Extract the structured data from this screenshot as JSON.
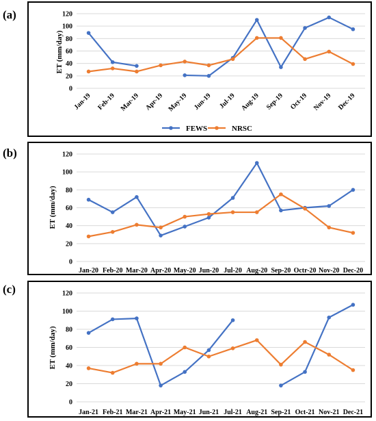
{
  "colors": {
    "fews": "#4472c4",
    "nrsc": "#ed7d31",
    "grid": "#d9d9d9",
    "frame": "#000000"
  },
  "chart_data": [
    {
      "panel_label": "(a)",
      "type": "line",
      "ylabel": "ET (mm/day)",
      "ylim": [
        0,
        120
      ],
      "yticks": [
        0,
        20,
        40,
        60,
        80,
        100,
        120
      ],
      "grid": true,
      "xtick_rotation": "-45deg",
      "legend": "bottom",
      "categories": [
        "Jan-19",
        "Feb-19",
        "Mar-19",
        "Apr-19",
        "May-19",
        "Jun-19",
        "Jul-19",
        "Aug-19",
        "Sep-19",
        "Oct-19",
        "Nov-19",
        "Dec-19"
      ],
      "series": [
        {
          "name": "FEWS",
          "color": "#4472c4",
          "values": [
            89,
            42,
            36,
            null,
            21,
            20,
            49,
            110,
            34,
            97,
            114,
            95
          ]
        },
        {
          "name": "NRSC",
          "color": "#ed7d31",
          "values": [
            27,
            32,
            27,
            37,
            43,
            37,
            47,
            81,
            81,
            47,
            59,
            39
          ]
        }
      ]
    },
    {
      "panel_label": "(b)",
      "type": "line",
      "ylabel": "ET (mm/day)",
      "ylim": [
        0,
        120
      ],
      "yticks": [
        0,
        20,
        40,
        60,
        80,
        100,
        120
      ],
      "grid": true,
      "xtick_rotation": "0deg",
      "legend": "none",
      "categories": [
        "Jan-20",
        "Feb-20",
        "Mar-20",
        "Apr-20",
        "May-20",
        "Jun-20",
        "Jul-20",
        "Aug-20",
        "Sep-20",
        "Octr-20",
        "Nov-20",
        "Dec-20"
      ],
      "series": [
        {
          "color": "#4472c4",
          "values": [
            69,
            55,
            72,
            29,
            39,
            49,
            71,
            110,
            57,
            60,
            62,
            80
          ]
        },
        {
          "color": "#ed7d31",
          "values": [
            28,
            33,
            41,
            38,
            50,
            53,
            55,
            55,
            75,
            59,
            38,
            32
          ]
        }
      ]
    },
    {
      "panel_label": "(c)",
      "type": "line",
      "ylabel": "ET (mm/day)",
      "ylim": [
        0,
        120
      ],
      "yticks": [
        0,
        20,
        40,
        60,
        80,
        100,
        120
      ],
      "grid": true,
      "xtick_rotation": "0deg",
      "legend": "none",
      "categories": [
        "Jan-21",
        "Feb-21",
        "Mar-21",
        "Apr-21",
        "May-21",
        "Jun-21",
        "Jul-21",
        "Aug-21",
        "Sep-21",
        "Oct-21",
        "Nov-21",
        "Dec-21"
      ],
      "series": [
        {
          "color": "#4472c4",
          "values": [
            76,
            91,
            92,
            18,
            33,
            57,
            90,
            null,
            18,
            33,
            93,
            107
          ]
        },
        {
          "color": "#ed7d31",
          "values": [
            37,
            32,
            42,
            42,
            60,
            50,
            59,
            68,
            41,
            66,
            52,
            35
          ]
        }
      ]
    }
  ]
}
